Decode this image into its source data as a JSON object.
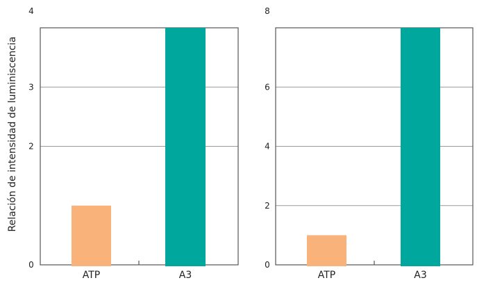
{
  "colors": {
    "atp": "#f8b27a",
    "a3": "#00a79d",
    "axis": "#555555",
    "grid": "#999999"
  },
  "chart_data": [
    {
      "type": "bar",
      "categories": [
        "ATP",
        "A3"
      ],
      "values": [
        1,
        4
      ],
      "ylabel": "Relación de intensidad de luminiscencia",
      "ylim": [
        0,
        4
      ],
      "yticks": [
        "0",
        "2",
        "3",
        "4"
      ],
      "ytick_values": [
        0,
        2,
        3,
        4
      ],
      "grid": true
    },
    {
      "type": "bar",
      "categories": [
        "ATP",
        "A3"
      ],
      "values": [
        1,
        8
      ],
      "ylabel": "",
      "ylim": [
        0,
        8
      ],
      "yticks": [
        "0",
        "2",
        "4",
        "6",
        "8"
      ],
      "ytick_values": [
        0,
        2,
        4,
        6,
        8
      ],
      "grid": true
    }
  ]
}
